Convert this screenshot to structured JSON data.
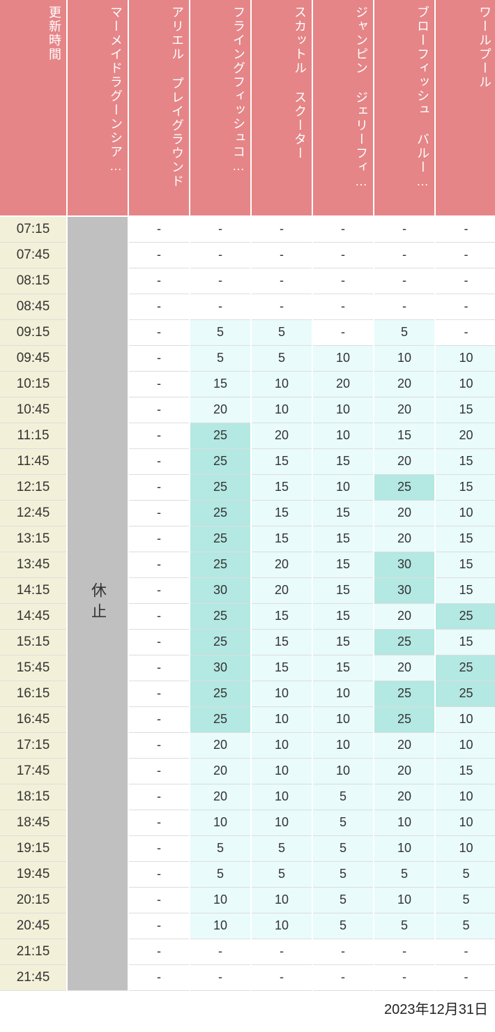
{
  "date_label": "2023年12月31日",
  "colors": {
    "header_bg": "#e58587",
    "header_fg": "#ffffff",
    "time_bg": "#f2f0d8",
    "closed_bg": "#c0c0c0",
    "tier_white": "#ffffff",
    "tier_light": "#e9fbfb",
    "tier_mid": "#b4e8e2",
    "border": "#ffffff",
    "row_border": "#dddddd"
  },
  "thresholds": {
    "mid_min": 25
  },
  "closed_label": "休止",
  "headers": [
    "更新時間",
    "マーメイドラグーンシア…",
    "アリエル プレイグラウンド",
    "フライングフィッシュコ…",
    "スカットル スクーター",
    "ジャンピン ジェリーフィ…",
    "ブローフィッシュ バルー…",
    "ワールプール"
  ],
  "times": [
    "07:15",
    "07:45",
    "08:15",
    "08:45",
    "09:15",
    "09:45",
    "10:15",
    "10:45",
    "11:15",
    "11:45",
    "12:15",
    "12:45",
    "13:15",
    "13:45",
    "14:15",
    "14:45",
    "15:15",
    "15:45",
    "16:15",
    "16:45",
    "17:15",
    "17:45",
    "18:15",
    "18:45",
    "19:15",
    "19:45",
    "20:15",
    "20:45",
    "21:15",
    "21:45"
  ],
  "attractions": [
    {
      "key": "mermaid_lagoon_theater",
      "closed": true,
      "values": []
    },
    {
      "key": "ariel_playground",
      "closed": false,
      "values": [
        null,
        null,
        null,
        null,
        null,
        null,
        null,
        null,
        null,
        null,
        null,
        null,
        null,
        null,
        null,
        null,
        null,
        null,
        null,
        null,
        null,
        null,
        null,
        null,
        null,
        null,
        null,
        null,
        null,
        null
      ]
    },
    {
      "key": "flying_fish_coaster",
      "closed": false,
      "values": [
        null,
        null,
        null,
        null,
        5,
        5,
        15,
        20,
        25,
        25,
        25,
        25,
        25,
        25,
        30,
        25,
        25,
        30,
        25,
        25,
        20,
        20,
        20,
        10,
        5,
        5,
        10,
        10,
        null,
        null
      ]
    },
    {
      "key": "scuttle_scooter",
      "closed": false,
      "values": [
        null,
        null,
        null,
        null,
        5,
        5,
        10,
        10,
        20,
        15,
        15,
        15,
        15,
        20,
        20,
        15,
        15,
        15,
        10,
        10,
        10,
        10,
        10,
        10,
        5,
        5,
        10,
        10,
        null,
        null
      ]
    },
    {
      "key": "jumpin_jellyfish",
      "closed": false,
      "values": [
        null,
        null,
        null,
        null,
        null,
        10,
        20,
        10,
        10,
        15,
        10,
        15,
        15,
        15,
        15,
        15,
        15,
        15,
        10,
        10,
        10,
        10,
        5,
        5,
        5,
        5,
        5,
        5,
        null,
        null
      ]
    },
    {
      "key": "blowfish_balloon",
      "closed": false,
      "values": [
        null,
        null,
        null,
        null,
        5,
        10,
        20,
        20,
        15,
        20,
        25,
        20,
        20,
        30,
        30,
        20,
        25,
        20,
        25,
        25,
        20,
        20,
        20,
        10,
        10,
        5,
        10,
        5,
        null,
        null
      ]
    },
    {
      "key": "whirlpool",
      "closed": false,
      "values": [
        null,
        null,
        null,
        null,
        null,
        10,
        10,
        15,
        20,
        15,
        15,
        10,
        15,
        15,
        15,
        25,
        15,
        25,
        25,
        10,
        10,
        15,
        10,
        10,
        10,
        5,
        5,
        5,
        null,
        null
      ]
    }
  ]
}
